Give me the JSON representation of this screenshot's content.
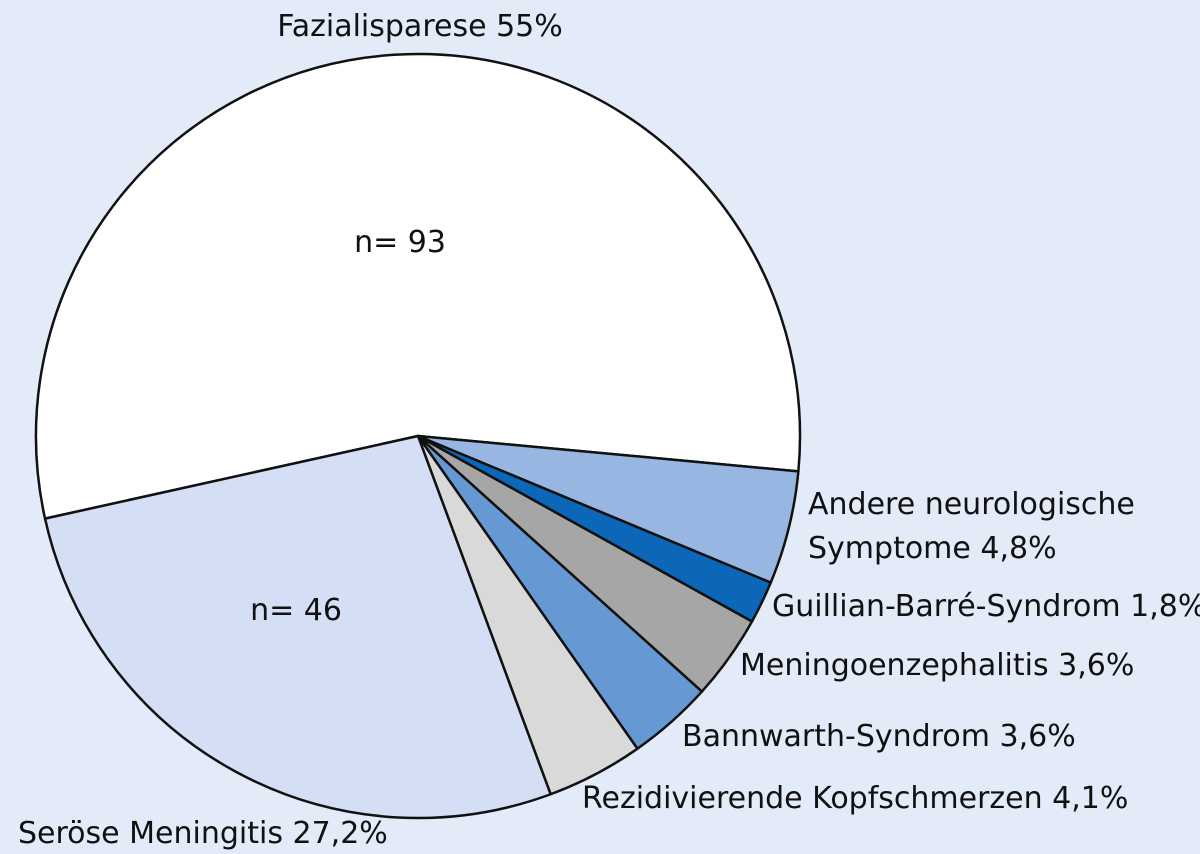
{
  "chart_data": {
    "type": "pie",
    "background": "#e3eaf8",
    "slices": [
      {
        "label": "Fazialisparese 55%",
        "value": 55,
        "count_label": "n= 93",
        "color": "#ffffff"
      },
      {
        "label": "Andere neurologische Symptome 4,8%",
        "label_lines": [
          "Andere neurologische",
          "Symptome 4,8%"
        ],
        "value": 4.8,
        "color": "#97b6e1"
      },
      {
        "label": "Guillian-Barré-Syndrom 1,8%",
        "value": 1.8,
        "color": "#0c67b8"
      },
      {
        "label": "Meningoenzephalitis 3,6%",
        "value": 3.6,
        "color": "#a6a6a6"
      },
      {
        "label": "Bannwarth-Syndrom 3,6%",
        "value": 3.6,
        "color": "#6699d4"
      },
      {
        "label": "Rezidivierende Kopfschmerzen 4,1%",
        "value": 4.1,
        "color": "#d9d9d9"
      },
      {
        "label": "Seröse Meningitis 27,2%",
        "value": 27.2,
        "count_label": "n= 46",
        "color": "#d4dff5"
      }
    ]
  }
}
